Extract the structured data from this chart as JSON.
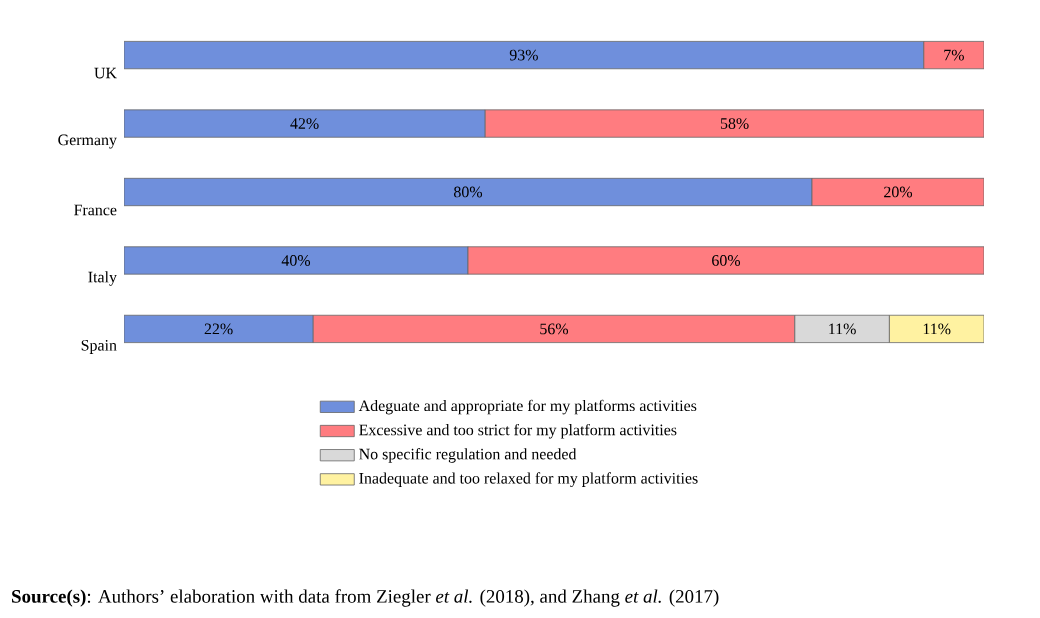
{
  "chart_data": {
    "type": "bar",
    "orientation": "horizontal",
    "stacked": true,
    "categories": [
      "UK",
      "Germany",
      "France",
      "Italy",
      "Spain"
    ],
    "series": [
      {
        "name": "Adeguate and appropriate for my platforms activities",
        "color": "#6f8fdc",
        "values": [
          93,
          42,
          80,
          40,
          22
        ],
        "value_labels": [
          "93%",
          "42%",
          "80%",
          "40%",
          "22%"
        ]
      },
      {
        "name": "Excessive and too strict for my platform activities",
        "color": "#ff7c80",
        "values": [
          7,
          58,
          20,
          60,
          56
        ],
        "value_labels": [
          "7%",
          "58%",
          "20%",
          "60%",
          "56%"
        ]
      },
      {
        "name": "No specific regulation and needed",
        "color": "#d9d9d9",
        "values": [
          null,
          null,
          null,
          null,
          11
        ],
        "value_labels": [
          null,
          null,
          null,
          null,
          "11%"
        ]
      },
      {
        "name": "Inadequate and too relaxed for my platform activities",
        "color": "#fff2a1",
        "values": [
          null,
          null,
          null,
          null,
          11
        ],
        "value_labels": [
          null,
          null,
          null,
          null,
          "11%"
        ]
      }
    ],
    "legend": "bottom",
    "annotations": [
      "**Source(s)**: Authors’ elaboration with data from Ziegler *et al.* (2018), and Zhang *et al.* (2017)"
    ]
  }
}
